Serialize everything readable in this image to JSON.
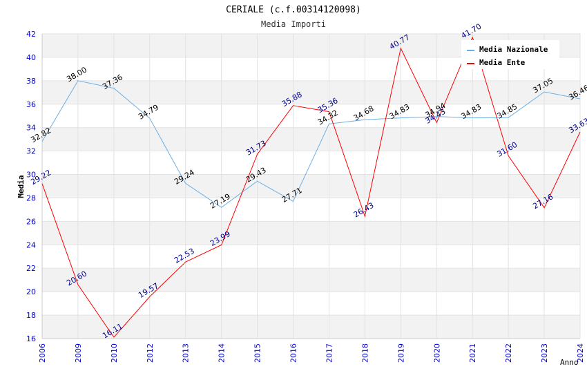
{
  "chart_data": {
    "type": "line",
    "title": "CERIALE (c.f.00314120098)",
    "subtitle": "Media Importi",
    "xlabel": "Anno",
    "ylabel": "Media",
    "ylim": [
      16,
      42
    ],
    "ytick_step": 2,
    "grid": true,
    "legend_position": "top-right",
    "categories": [
      "2006",
      "2009",
      "2010",
      "2012",
      "2013",
      "2014",
      "2015",
      "2016",
      "2017",
      "2018",
      "2019",
      "2020",
      "2021",
      "2022",
      "2023",
      "2024"
    ],
    "series": [
      {
        "name": "Media Nazionale",
        "color": "#6aaee6",
        "label_color": "#000000",
        "values": [
          32.82,
          38.0,
          37.36,
          34.79,
          29.24,
          27.19,
          29.43,
          27.71,
          34.32,
          34.68,
          34.83,
          34.94,
          34.83,
          34.85,
          37.05,
          36.46
        ],
        "labels": [
          "32.82",
          "38.00",
          "37.36",
          "34.79",
          "29.24",
          "27.19",
          "29.43",
          "27.71",
          "34.32",
          "34.68",
          "34.83",
          "34.94",
          "34.83",
          "34.85",
          "37.05",
          "36.46"
        ]
      },
      {
        "name": "Media Ente",
        "color": "#ff0000",
        "label_color": "#00008b",
        "values": [
          29.22,
          20.6,
          16.11,
          19.57,
          22.53,
          23.99,
          31.73,
          35.88,
          35.36,
          26.43,
          40.77,
          34.43,
          41.7,
          31.6,
          27.16,
          33.63
        ],
        "labels": [
          "29.22",
          "20.60",
          "16.11",
          "19.57",
          "22.53",
          "23.99",
          "31.73",
          "35.88",
          "35.36",
          "26.43",
          "40.77",
          "34.43",
          "41.70",
          "31.60",
          "27.16",
          "33.63"
        ]
      }
    ]
  }
}
